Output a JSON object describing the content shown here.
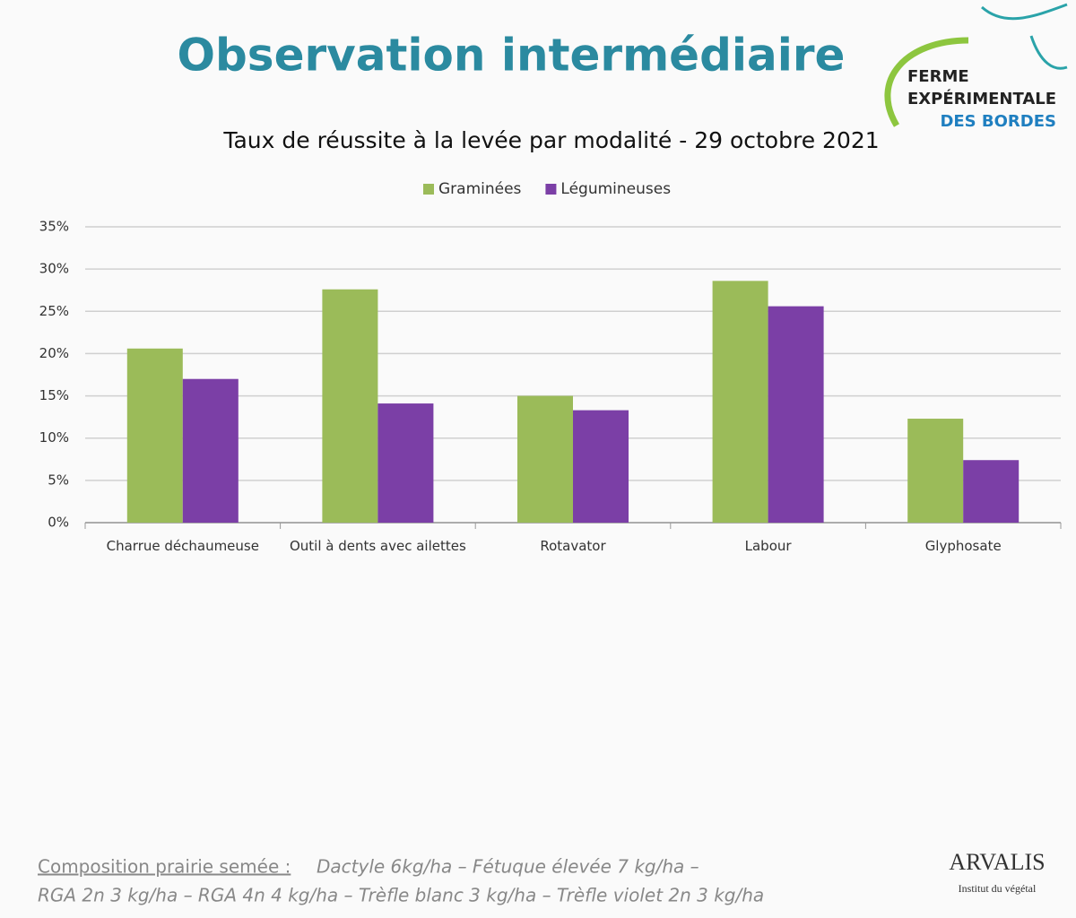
{
  "slide": {
    "title": "Observation intermédiaire",
    "logo": {
      "line1": "FERME",
      "line2": "EXPÉRIMENTALE",
      "line3": "DES BORDES"
    },
    "brand": {
      "name": "ARVALIS",
      "tagline": "Institut du végétal"
    },
    "footnote": {
      "lead": "Composition prairie semée :",
      "lines": [
        "Dactyle 6kg/ha – Fétuque élevée 7 kg/ha –",
        "RGA 2n 3 kg/ha – RGA 4n 4 kg/ha – Trèfle blanc 3 kg/ha – Trèfle violet 2n 3 kg/ha"
      ]
    }
  },
  "chart_data": {
    "type": "bar",
    "title": "Taux de réussite à la levée par modalité - 29 octobre 2021",
    "categories": [
      "Charrue déchaumeuse",
      "Outil à dents avec ailettes",
      "Rotavator",
      "Labour",
      "Glyphosate"
    ],
    "series": [
      {
        "name": "Graminées",
        "color": "#9bbb59",
        "values": [
          20.6,
          27.6,
          15.0,
          28.6,
          12.3
        ]
      },
      {
        "name": "Légumineuses",
        "color": "#7b3fa6",
        "values": [
          17.0,
          14.1,
          13.3,
          25.6,
          7.4
        ]
      }
    ],
    "ylim": [
      0,
      35
    ],
    "yticks": [
      {
        "value": 0,
        "label": "0%"
      },
      {
        "value": 5,
        "label": "5%"
      },
      {
        "value": 10,
        "label": "10%"
      },
      {
        "value": 15,
        "label": "15%"
      },
      {
        "value": 20,
        "label": "20%"
      },
      {
        "value": 25,
        "label": "25%"
      },
      {
        "value": 30,
        "label": "30%"
      },
      {
        "value": 35,
        "label": "35%"
      }
    ],
    "grid": true,
    "legend": "top"
  }
}
